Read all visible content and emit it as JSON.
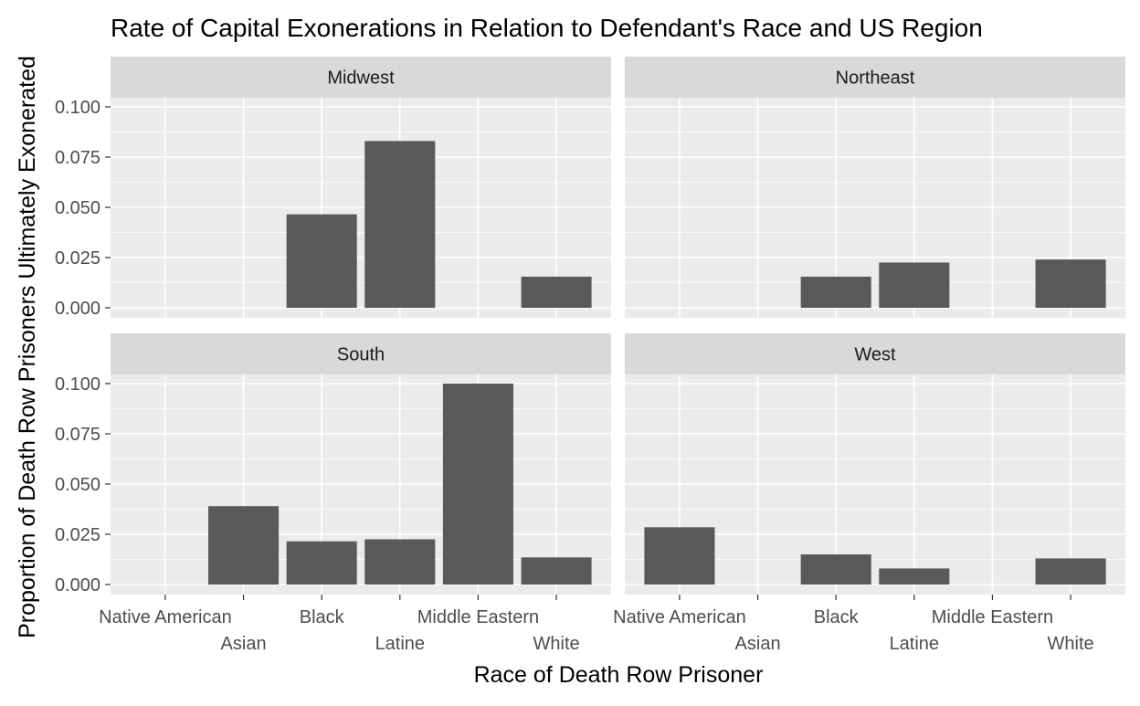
{
  "chart_data": {
    "type": "bar",
    "title": "Rate of Capital Exonerations in Relation to Defendant's Race and US Region",
    "xlabel": "Race of Death Row Prisoner",
    "ylabel": "Proportion of Death Row Prisoners Ultimately Exonerated",
    "categories": [
      "Native American",
      "Asian",
      "Black",
      "Latine",
      "Middle Eastern",
      "White"
    ],
    "ylim": [
      0,
      0.1
    ],
    "y_ticks": [
      "0.000",
      "0.025",
      "0.050",
      "0.075",
      "0.100"
    ],
    "y_tick_values": [
      0,
      0.025,
      0.05,
      0.075,
      0.1
    ],
    "grid": true,
    "facet_by": "region",
    "panels": [
      {
        "name": "Midwest",
        "values": [
          null,
          null,
          0.0465,
          0.083,
          null,
          0.0155
        ]
      },
      {
        "name": "Northeast",
        "values": [
          null,
          null,
          0.0155,
          0.0225,
          null,
          0.024
        ]
      },
      {
        "name": "South",
        "values": [
          null,
          0.039,
          0.0215,
          0.0225,
          0.1,
          0.0135
        ]
      },
      {
        "name": "West",
        "values": [
          0.0285,
          null,
          0.015,
          0.008,
          null,
          0.013
        ]
      }
    ],
    "colors": {
      "bar": "#595959",
      "panel": "#ebebeb",
      "strip": "#d9d9d9",
      "grid": "#ffffff"
    }
  }
}
